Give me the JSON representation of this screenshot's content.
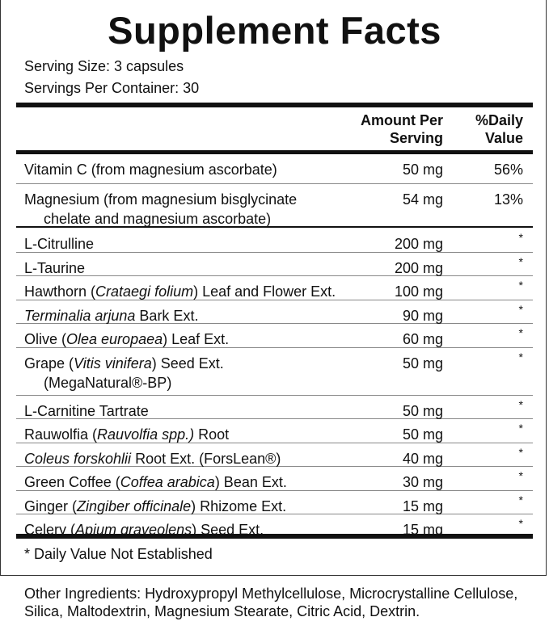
{
  "title": "Supplement Facts",
  "serving_size": "Serving Size: 3 capsules",
  "servings_per_container": "Servings Per Container: 30",
  "headers": {
    "amount_line1": "Amount Per",
    "amount_line2": "Serving",
    "dv_line1": "%Daily",
    "dv_line2": "Value"
  },
  "nutrients": [
    {
      "name": [
        {
          "t": "Vitamin C (from magnesium ascorbate)"
        }
      ],
      "amount": "50 mg",
      "dv": "56%"
    },
    {
      "name": [
        {
          "t": "Magnesium (from magnesium bisglycinate"
        }
      ],
      "name2": [
        {
          "t": "chelate and magnesium ascorbate)"
        }
      ],
      "amount": "54 mg",
      "dv": "13%"
    }
  ],
  "ingredients": [
    {
      "name": [
        {
          "t": "L-Citrulline"
        }
      ],
      "amount": "200 mg",
      "dv": "*"
    },
    {
      "name": [
        {
          "t": "L-Taurine"
        }
      ],
      "amount": "200 mg",
      "dv": "*"
    },
    {
      "name": [
        {
          "t": "Hawthorn ("
        },
        {
          "t": "Crataegi folium",
          "i": true
        },
        {
          "t": ") Leaf and Flower Ext."
        }
      ],
      "amount": "100 mg",
      "dv": "*"
    },
    {
      "name": [
        {
          "t": "Terminalia arjuna",
          "i": true
        },
        {
          "t": " Bark Ext."
        }
      ],
      "amount": "90 mg",
      "dv": "*"
    },
    {
      "name": [
        {
          "t": "Olive ("
        },
        {
          "t": "Olea europaea",
          "i": true
        },
        {
          "t": ") Leaf Ext."
        }
      ],
      "amount": "60 mg",
      "dv": "*"
    },
    {
      "name": [
        {
          "t": "Grape ("
        },
        {
          "t": "Vitis vinifera",
          "i": true
        },
        {
          "t": ") Seed Ext."
        }
      ],
      "name2": [
        {
          "t": "(MegaNatural®-BP)"
        }
      ],
      "amount": "50 mg",
      "dv": "*"
    },
    {
      "name": [
        {
          "t": "L-Carnitine Tartrate"
        }
      ],
      "amount": "50 mg",
      "dv": "*"
    },
    {
      "name": [
        {
          "t": "Rauwolfia ("
        },
        {
          "t": "Rauvolfia spp.)",
          "i": true
        },
        {
          "t": " Root"
        }
      ],
      "amount": "50 mg",
      "dv": "*"
    },
    {
      "name": [
        {
          "t": "Coleus forskohlii",
          "i": true
        },
        {
          "t": " Root Ext. (ForsLean®)"
        }
      ],
      "amount": "40 mg",
      "dv": "*"
    },
    {
      "name": [
        {
          "t": "Green Coffee ("
        },
        {
          "t": "Coffea arabica",
          "i": true
        },
        {
          "t": ") Bean Ext."
        }
      ],
      "amount": "30 mg",
      "dv": "*"
    },
    {
      "name": [
        {
          "t": "Ginger ("
        },
        {
          "t": "Zingiber officinale",
          "i": true
        },
        {
          "t": ") Rhizome Ext."
        }
      ],
      "amount": "15 mg",
      "dv": "*"
    },
    {
      "name": [
        {
          "t": "Celery ("
        },
        {
          "t": "Apium graveolens",
          "i": true
        },
        {
          "t": ") Seed Ext."
        }
      ],
      "amount": "15 mg",
      "dv": "*"
    }
  ],
  "footnote": "* Daily Value Not Established",
  "other_ingredients": "Other Ingredients: Hydroxypropyl Methylcellulose, Microcrystalline Cellulose, Silica, Maltodextrin, Magnesium Stearate, Citric Acid, Dextrin."
}
